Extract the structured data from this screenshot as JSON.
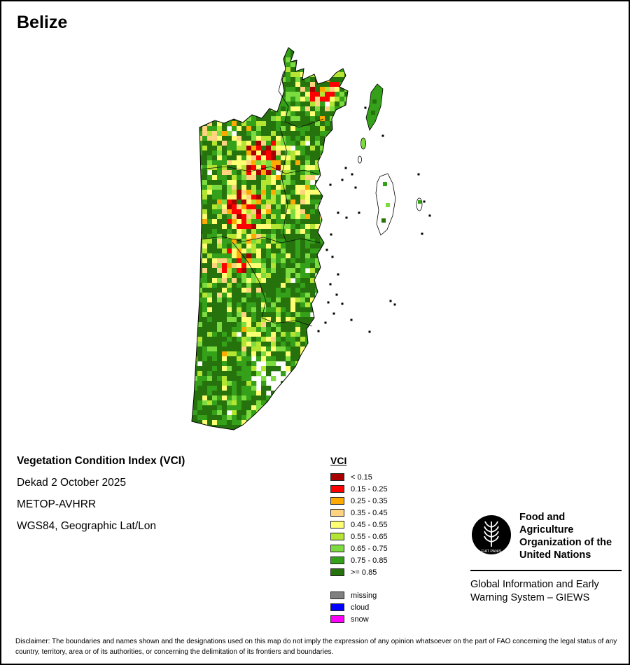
{
  "title": "Belize",
  "info": {
    "product": "Vegetation Condition Index (VCI)",
    "dekad": "Dekad 2 October 2025",
    "sensor": "METOP-AVHRR",
    "projection": "WGS84, Geographic Lat/Lon"
  },
  "legend": {
    "title": "VCI",
    "classes": [
      {
        "label": "< 0.15",
        "color": "#A80000"
      },
      {
        "label": "0.15 - 0.25",
        "color": "#FF0000"
      },
      {
        "label": "0.25 - 0.35",
        "color": "#FFAA00"
      },
      {
        "label": "0.35 - 0.45",
        "color": "#FFD37F"
      },
      {
        "label": "0.45 - 0.55",
        "color": "#FFFF73"
      },
      {
        "label": "0.55 - 0.65",
        "color": "#B4E532"
      },
      {
        "label": "0.65 - 0.75",
        "color": "#7CDB3E"
      },
      {
        "label": "0.75 - 0.85",
        "color": "#35A019"
      },
      {
        "label": ">= 0.85",
        "color": "#26730D"
      }
    ],
    "extras": [
      {
        "label": "missing",
        "color": "#808080"
      },
      {
        "label": "cloud",
        "color": "#0000FF"
      },
      {
        "label": "snow",
        "color": "#FF00FF"
      }
    ]
  },
  "footer": {
    "fao_logo_motto": "FIAT PANIS",
    "fao_name": "Food and Agriculture Organization of the United Nations",
    "giews_name": "Global Information and Early Warning System – GIEWS",
    "disclaimer": "Disclaimer: The boundaries and names shown and the designations used on this map do not imply the expression of any opinion whatsoever on the part of FAO concerning the legal status of any country, territory, area or of its authorities, or concerning the delimitation of its frontiers and boundaries."
  }
}
